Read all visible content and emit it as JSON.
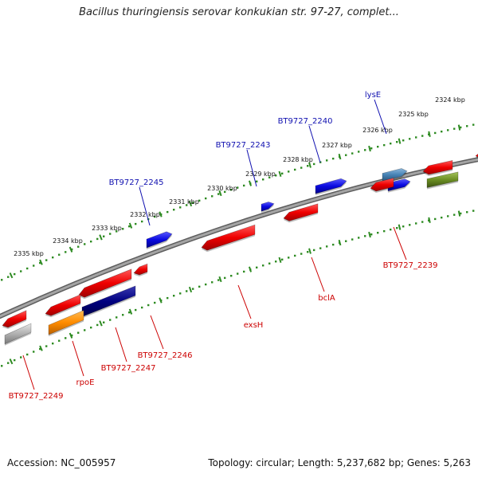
{
  "title": "Bacillus thuringiensis serovar konkukian str. 97-27, complet...",
  "footer": {
    "accession": "Accession: NC_005957",
    "topology": "Topology: circular; Length: 5,237,682 bp; Genes: 5,263"
  },
  "colors": {
    "backbone": "#8a8a8a",
    "ruler": "#2e8b22",
    "forward_label": "#1010b0",
    "reverse_label": "#cc0000",
    "gene_red": "#ee0000",
    "gene_blue": "#0a0ae0",
    "gene_steel": "#4682b4",
    "gene_olive": "#6b8e23",
    "gene_orange": "#ff8c00",
    "gene_navy": "#000080",
    "gene_grey": "#b0b0b0"
  },
  "ruler_ticks": [
    "2324 kbp",
    "2325 kbp",
    "2326 kbp",
    "2327 kbp",
    "2328 kbp",
    "2329 kbp",
    "2330 kbp",
    "2331 kbp",
    "2332 kbp",
    "2333 kbp",
    "2334 kbp",
    "2335 kbp"
  ],
  "genes": [
    {
      "id": "lysE",
      "label": "lysE",
      "strand": "forward"
    },
    {
      "id": "BT9727_2240",
      "label": "BT9727_2240",
      "strand": "forward"
    },
    {
      "id": "BT9727_2243",
      "label": "BT9727_2243",
      "strand": "forward"
    },
    {
      "id": "BT9727_2245",
      "label": "BT9727_2245",
      "strand": "forward"
    },
    {
      "id": "BT9727_2239",
      "label": "BT9727_2239",
      "strand": "reverse"
    },
    {
      "id": "bclA",
      "label": "bclA",
      "strand": "reverse"
    },
    {
      "id": "exsH",
      "label": "exsH",
      "strand": "reverse"
    },
    {
      "id": "BT9727_2246",
      "label": "BT9727_2246",
      "strand": "reverse"
    },
    {
      "id": "BT9727_2247",
      "label": "BT9727_2247",
      "strand": "reverse"
    },
    {
      "id": "rpoE",
      "label": "rpoE",
      "strand": "reverse"
    },
    {
      "id": "BT9727_2249",
      "label": "BT9727_2249",
      "strand": "reverse"
    }
  ]
}
